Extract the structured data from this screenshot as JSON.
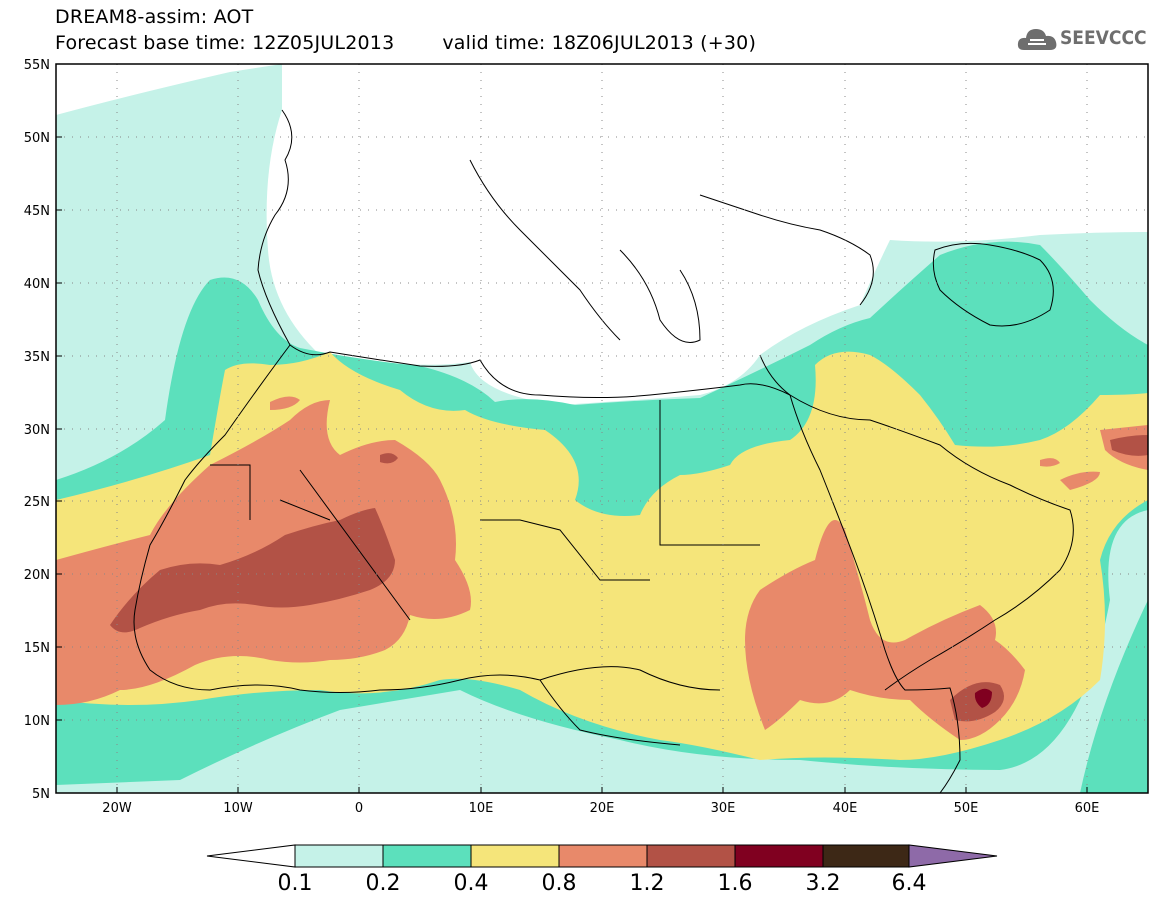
{
  "header": {
    "title": "DREAM8-assim: AOT",
    "base_time_label": "Forecast base time: 12Z05JUL2013",
    "valid_time_label": "valid time: 18Z06JUL2013 (+30)"
  },
  "logo": {
    "text": "SEEVCCC",
    "icon": "cloud-icon"
  },
  "map": {
    "projection": "lat-lon",
    "lon_range": [
      -25,
      65
    ],
    "lat_range": [
      5,
      55
    ],
    "lat_ticks": [
      "5N",
      "10N",
      "15N",
      "20N",
      "25N",
      "30N",
      "35N",
      "40N",
      "45N",
      "50N",
      "55N"
    ],
    "lon_ticks": [
      "20W",
      "10W",
      "0",
      "10E",
      "20E",
      "30E",
      "40E",
      "50E",
      "60E"
    ],
    "grid": "dotted"
  },
  "colorbar": {
    "levels": [
      "0.1",
      "0.2",
      "0.4",
      "0.8",
      "1.2",
      "1.6",
      "3.2",
      "6.4"
    ],
    "colors": [
      "#ffffff",
      "#c5f2e8",
      "#5ce0bc",
      "#f5e57a",
      "#e8896a",
      "#b25246",
      "#800020",
      "#3d2816",
      "#8e6aa8"
    ]
  }
}
